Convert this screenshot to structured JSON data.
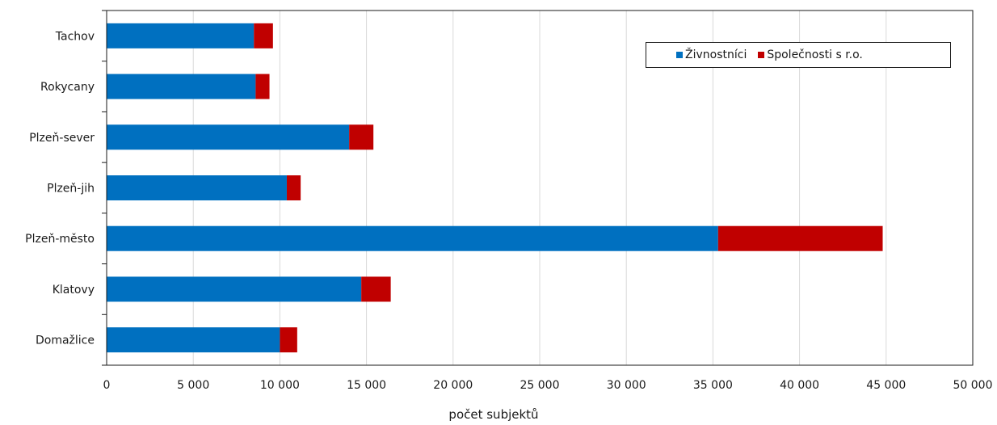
{
  "colors": {
    "zivnostnici": "#0070c0",
    "spolecnosti": "#c00000"
  },
  "chart_data": {
    "type": "bar",
    "orientation": "horizontal",
    "stacked": true,
    "categories": [
      "Tachov",
      "Rokycany",
      "Plzeň-sever",
      "Plzeň-jih",
      "Plzeň-město",
      "Klatovy",
      "Domažlice"
    ],
    "series": [
      {
        "name": "Živnostníci",
        "values": [
          8500,
          8600,
          14000,
          10400,
          35300,
          14700,
          10000
        ]
      },
      {
        "name": "Společnosti s r.o.",
        "values": [
          1100,
          800,
          1400,
          800,
          9500,
          1700,
          1000
        ]
      }
    ],
    "xlabel": "počet subjektů",
    "ylabel": "",
    "xlim": [
      0,
      50000
    ],
    "xticks": [
      0,
      5000,
      10000,
      15000,
      20000,
      25000,
      30000,
      35000,
      40000,
      45000,
      50000
    ],
    "xtick_labels": [
      "0",
      "5 000",
      "10 000",
      "15 000",
      "20 000",
      "25 000",
      "30 000",
      "35 000",
      "40 000",
      "45 000",
      "50 000"
    ],
    "grid": "vertical",
    "legend_position": "top-right"
  }
}
